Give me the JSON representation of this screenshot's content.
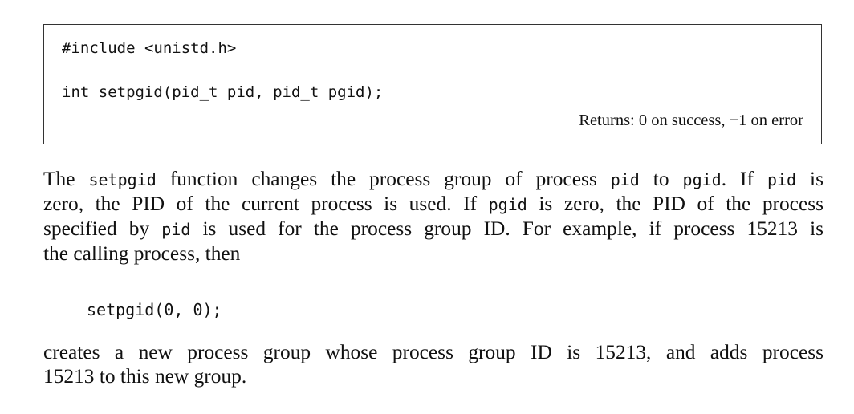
{
  "prototype": {
    "include": "#include <unistd.h>",
    "signature": "int setpgid(pid_t pid, pid_t pgid);",
    "returns": "Returns: 0 on success, −1 on error"
  },
  "paragraph1": {
    "l1": {
      "a": "The ",
      "b": "setpgid",
      "c": " function changes the process group of process ",
      "d": "pid",
      "e": " to ",
      "f": "pgid",
      "g": ". If ",
      "h": "pid",
      "i": " is"
    },
    "l2": {
      "a": "zero, the PID of the current process is used. If ",
      "b": "pgid",
      "c": " is zero, the PID of the process"
    },
    "l3": {
      "a": "specified by ",
      "b": "pid",
      "c": " is used for the process group ID. For example, if process 15213 is"
    },
    "l4": {
      "a": "the calling process, then"
    }
  },
  "code_example": "setpgid(0, 0);",
  "paragraph2": {
    "l1": "creates a new process group whose process group ID is 15213, and adds process",
    "l2": "15213 to this new group."
  }
}
